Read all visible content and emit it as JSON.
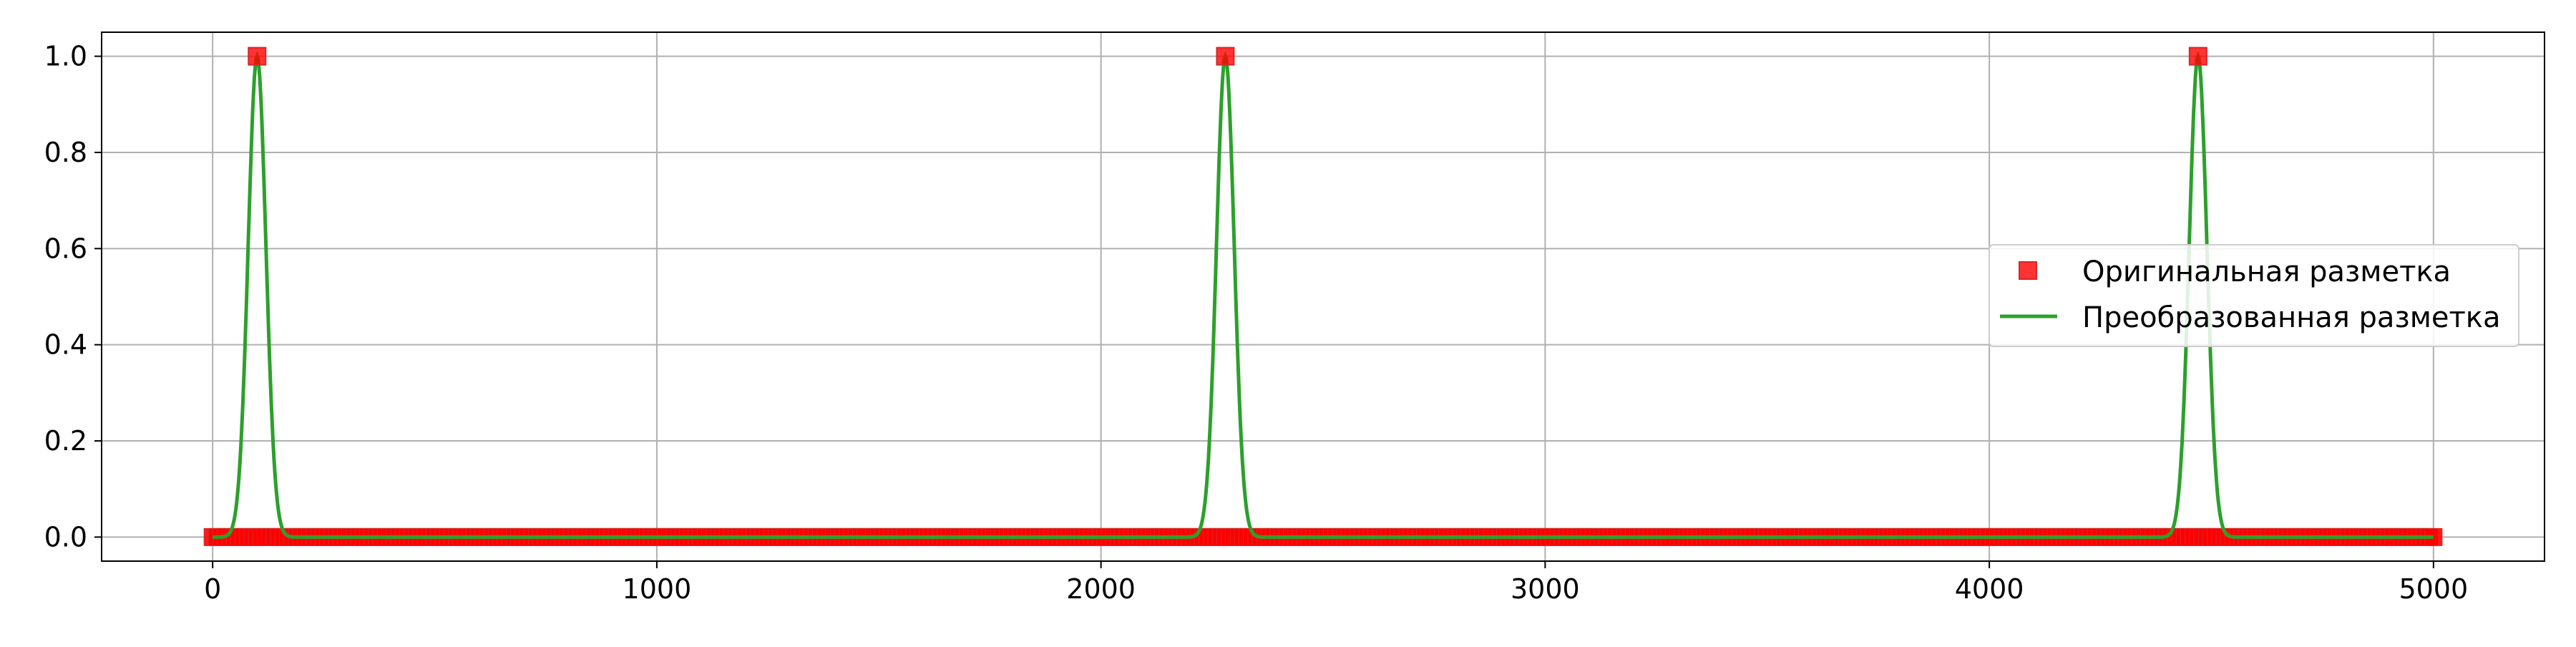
{
  "chart_data": {
    "type": "line",
    "title": "",
    "xlabel": "",
    "ylabel": "",
    "xlim": [
      -250,
      5250
    ],
    "ylim": [
      -0.05,
      1.05
    ],
    "x_ticks": [
      0,
      1000,
      2000,
      3000,
      4000,
      5000
    ],
    "x_tick_labels": [
      "0",
      "1000",
      "2000",
      "3000",
      "4000",
      "5000"
    ],
    "y_ticks": [
      0.0,
      0.2,
      0.4,
      0.6,
      0.8,
      1.0
    ],
    "y_tick_labels": [
      "0.0",
      "0.2",
      "0.4",
      "0.6",
      "0.8",
      "1.0"
    ],
    "grid": true,
    "legend_position": "center-right",
    "series": [
      {
        "name": "Оригинальная разметка",
        "kind": "markers",
        "marker": "square",
        "color": "#ff0000",
        "x_range": [
          0,
          5000
        ],
        "baseline_value": 0.0,
        "peaks": [
          {
            "x": 100,
            "y": 1.0
          },
          {
            "x": 2280,
            "y": 1.0
          },
          {
            "x": 4470,
            "y": 1.0
          }
        ]
      },
      {
        "name": "Преобразованная разметка",
        "kind": "line",
        "color": "#2ca02c",
        "x_range": [
          0,
          5000
        ],
        "baseline_value": 0.0,
        "peaks": [
          {
            "x": 100,
            "y": 1.0
          },
          {
            "x": 2280,
            "y": 1.0
          },
          {
            "x": 4470,
            "y": 1.0
          }
        ],
        "peak_sigma": 20
      }
    ]
  },
  "legend": {
    "entries": [
      {
        "label": "Оригинальная разметка",
        "marker": "square-icon",
        "color": "#ff0000"
      },
      {
        "label": "Преобразованная разметка",
        "marker": "line-icon",
        "color": "#2ca02c"
      }
    ]
  }
}
